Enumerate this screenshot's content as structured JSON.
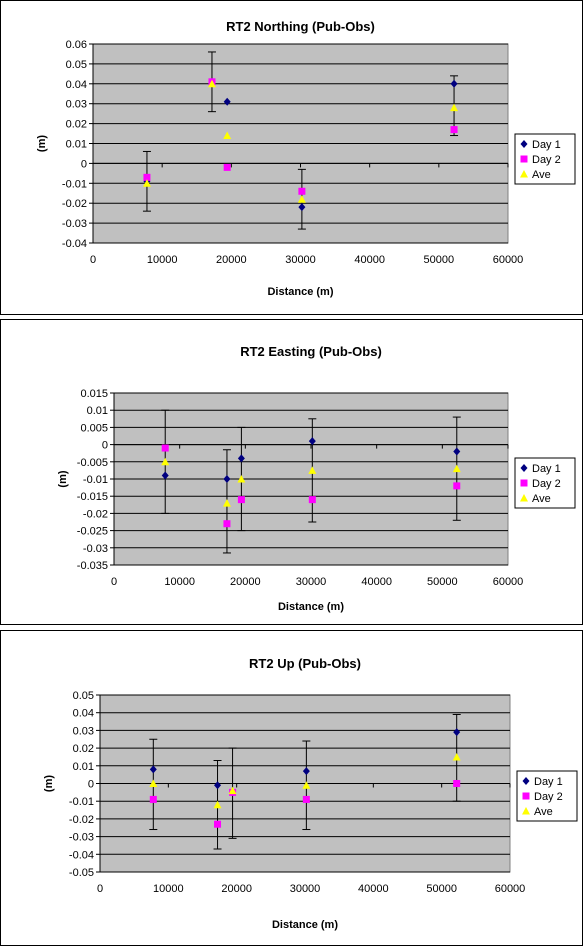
{
  "colors": {
    "plot_bg": "#c0c0c0",
    "grid": "#000000",
    "day1": "#000080",
    "day2": "#ff00ff",
    "ave": "#ffff00"
  },
  "legend": [
    "Day 1",
    "Day 2",
    "Ave"
  ],
  "chart_data": [
    {
      "type": "scatter",
      "title": "RT2 Northing (Pub-Obs)",
      "xlabel": "Distance (m)",
      "ylabel": "(m)",
      "xlim": [
        0,
        60000
      ],
      "ylim": [
        -0.04,
        0.06
      ],
      "xticks": [
        0,
        10000,
        20000,
        30000,
        40000,
        50000,
        60000
      ],
      "yticks": [
        -0.04,
        -0.03,
        -0.02,
        -0.01,
        0,
        0.01,
        0.02,
        0.03,
        0.04,
        0.05,
        0.06
      ],
      "ytick_labels": [
        "-0.04",
        "-0.03",
        "-0.02",
        "-0.01",
        "0",
        "0.01",
        "0.02",
        "0.03",
        "0.04",
        "0.05",
        "0.06"
      ],
      "grid": true,
      "legend_position": "right",
      "series": [
        {
          "name": "Day 1",
          "marker": "diamond",
          "x": [
            7800,
            17200,
            19400,
            30200,
            52200
          ],
          "y": [
            -0.009,
            0.041,
            0.031,
            -0.022,
            0.04
          ]
        },
        {
          "name": "Day 2",
          "marker": "square",
          "x": [
            7800,
            17200,
            19400,
            30200,
            52200
          ],
          "y": [
            -0.007,
            0.041,
            -0.002,
            -0.014,
            0.017
          ]
        },
        {
          "name": "Ave",
          "marker": "triangle",
          "x": [
            7800,
            17200,
            19400,
            30200,
            52200
          ],
          "y": [
            -0.01,
            0.04,
            0.014,
            -0.018,
            0.028
          ]
        }
      ],
      "error_bars": [
        {
          "x": 7800,
          "low": -0.024,
          "high": 0.006
        },
        {
          "x": 17200,
          "low": 0.026,
          "high": 0.056
        },
        {
          "x": 30200,
          "low": -0.033,
          "high": -0.003
        },
        {
          "x": 52200,
          "low": 0.014,
          "high": 0.044
        }
      ]
    },
    {
      "type": "scatter",
      "title": "RT2 Easting (Pub-Obs)",
      "xlabel": "Distance (m)",
      "ylabel": "(m)",
      "xlim": [
        0,
        60000
      ],
      "ylim": [
        -0.035,
        0.015
      ],
      "xticks": [
        0,
        10000,
        20000,
        30000,
        40000,
        50000,
        60000
      ],
      "yticks": [
        -0.035,
        -0.03,
        -0.025,
        -0.02,
        -0.015,
        -0.01,
        -0.005,
        0,
        0.005,
        0.01,
        0.015
      ],
      "ytick_labels": [
        "-0.035",
        "-0.03",
        "-0.025",
        "-0.02",
        "-0.015",
        "-0.01",
        "-0.005",
        "0",
        "0.005",
        "0.01",
        "0.015"
      ],
      "grid": true,
      "legend_position": "right",
      "series": [
        {
          "name": "Day 1",
          "marker": "diamond",
          "x": [
            7800,
            17200,
            19400,
            30200,
            52200
          ],
          "y": [
            -0.009,
            -0.01,
            -0.004,
            0.001,
            -0.002
          ]
        },
        {
          "name": "Day 2",
          "marker": "square",
          "x": [
            7800,
            17200,
            19400,
            30200,
            52200
          ],
          "y": [
            -0.001,
            -0.023,
            -0.016,
            -0.016,
            -0.012
          ]
        },
        {
          "name": "Ave",
          "marker": "triangle",
          "x": [
            7800,
            17200,
            19400,
            30200,
            52200
          ],
          "y": [
            -0.005,
            -0.017,
            -0.01,
            -0.0075,
            -0.007
          ]
        }
      ],
      "error_bars": [
        {
          "x": 7800,
          "low": -0.02,
          "high": 0.01
        },
        {
          "x": 17200,
          "low": -0.0315,
          "high": -0.0015
        },
        {
          "x": 19400,
          "low": -0.025,
          "high": 0.005
        },
        {
          "x": 30200,
          "low": -0.0225,
          "high": 0.0075
        },
        {
          "x": 52200,
          "low": -0.022,
          "high": 0.008
        }
      ]
    },
    {
      "type": "scatter",
      "title": "RT2 Up (Pub-Obs)",
      "xlabel": "Distance (m)",
      "ylabel": "(m)",
      "xlim": [
        0,
        60000
      ],
      "ylim": [
        -0.05,
        0.05
      ],
      "xticks": [
        0,
        10000,
        20000,
        30000,
        40000,
        50000,
        60000
      ],
      "yticks": [
        -0.05,
        -0.04,
        -0.03,
        -0.02,
        -0.01,
        0,
        0.01,
        0.02,
        0.03,
        0.04,
        0.05
      ],
      "ytick_labels": [
        "-0.05",
        "-0.04",
        "-0.03",
        "-0.02",
        "-0.01",
        "0",
        "0.01",
        "0.02",
        "0.03",
        "0.04",
        "0.05"
      ],
      "grid": true,
      "legend_position": "right",
      "series": [
        {
          "name": "Day 1",
          "marker": "diamond",
          "x": [
            7800,
            17200,
            19400,
            30200,
            52200
          ],
          "y": [
            0.008,
            -0.001,
            -0.005,
            0.007,
            0.029
          ]
        },
        {
          "name": "Day 2",
          "marker": "square",
          "x": [
            7800,
            17200,
            19400,
            30200,
            52200
          ],
          "y": [
            -0.009,
            -0.023,
            -0.005,
            -0.009,
            0.0
          ]
        },
        {
          "name": "Ave",
          "marker": "triangle",
          "x": [
            7800,
            17200,
            19400,
            30200,
            52200
          ],
          "y": [
            0.0,
            -0.012,
            -0.004,
            -0.001,
            0.015
          ]
        }
      ],
      "error_bars": [
        {
          "x": 7800,
          "low": -0.026,
          "high": 0.025
        },
        {
          "x": 17200,
          "low": -0.037,
          "high": 0.013
        },
        {
          "x": 19400,
          "low": -0.031,
          "high": 0.02
        },
        {
          "x": 30200,
          "low": -0.026,
          "high": 0.024
        },
        {
          "x": 52200,
          "low": -0.01,
          "high": 0.039
        }
      ]
    }
  ]
}
